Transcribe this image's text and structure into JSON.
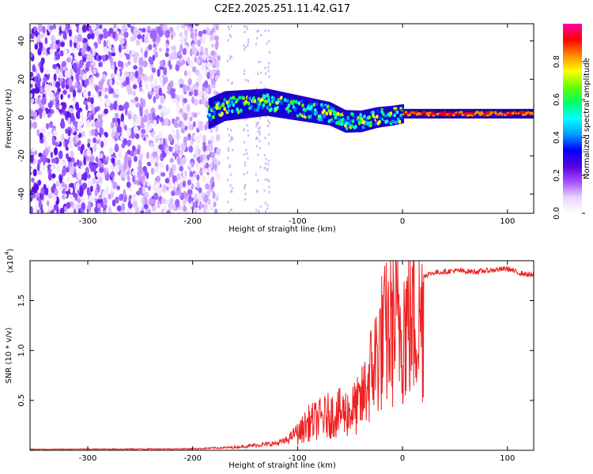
{
  "figure_title": "C2E2.2025.251.11.42.G17",
  "chart_data": [
    {
      "type": "heatmap",
      "title": "C2E2.2025.251.11.42.G17",
      "xlabel": "Height of straight line (km)",
      "ylabel": "Frequency (Hz)",
      "xlim": [
        -355,
        125
      ],
      "ylim": [
        -50,
        49
      ],
      "xticks": [
        -300,
        -200,
        -100,
        0,
        100
      ],
      "yticks": [
        -40,
        -20,
        0,
        20,
        40
      ],
      "colorbar": {
        "label": "Normalized spectral amplitude",
        "range": [
          0,
          1
        ],
        "ticks": [
          "0.0",
          "0.2",
          "0.4",
          "0.6",
          "0.8"
        ],
        "colors": [
          "#ffffff",
          "#e8d6ff",
          "#a64dff",
          "#5500dd",
          "#0000ff",
          "#00a0ff",
          "#00ffff",
          "#00ff66",
          "#66ff00",
          "#ffff00",
          "#ff8800",
          "#ff0000",
          "#ff00aa"
        ]
      },
      "features": [
        {
          "name": "noise",
          "x_range": [
            -355,
            -175
          ],
          "freq_range": [
            -50,
            49
          ],
          "amplitude": "low"
        },
        {
          "name": "signal_track",
          "points": [
            [
              -185,
              2
            ],
            [
              -170,
              6
            ],
            [
              -150,
              7
            ],
            [
              -130,
              8
            ],
            [
              -110,
              6
            ],
            [
              -90,
              4
            ],
            [
              -70,
              2
            ],
            [
              -55,
              -2
            ],
            [
              -40,
              -2
            ],
            [
              -25,
              0
            ],
            [
              -10,
              1
            ],
            [
              0,
              2
            ],
            [
              125,
              2
            ]
          ]
        }
      ]
    },
    {
      "type": "line",
      "xlabel": "Height of straight line (km)",
      "ylabel": "SNR (10 * v/v)",
      "y_scale_label": "(x10",
      "y_scale_exponent": "4",
      "xlim": [
        -355,
        125
      ],
      "ylim": [
        0,
        19000
      ],
      "xticks": [
        -300,
        -200,
        -100,
        0,
        100
      ],
      "yticks": [
        5000,
        10000,
        15000
      ],
      "ytick_labels": [
        "0.5",
        "1.0",
        "1.5"
      ],
      "series": [
        {
          "name": "SNR",
          "color": "#ee2222",
          "envelope": [
            [
              -355,
              100
            ],
            [
              -200,
              150
            ],
            [
              -160,
              300
            ],
            [
              -120,
              700
            ],
            [
              -110,
              1000
            ],
            [
              -100,
              2000
            ],
            [
              -90,
              3500
            ],
            [
              -80,
              4000
            ],
            [
              -70,
              4500
            ],
            [
              -60,
              4800
            ],
            [
              -50,
              5000
            ],
            [
              -40,
              6000
            ],
            [
              -30,
              10000
            ],
            [
              -20,
              14000
            ],
            [
              -10,
              16000
            ],
            [
              0,
              16500
            ],
            [
              10,
              17000
            ],
            [
              20,
              17500
            ],
            [
              30,
              17800
            ],
            [
              50,
              18000
            ],
            [
              70,
              17900
            ],
            [
              90,
              18100
            ],
            [
              100,
              18200
            ],
            [
              110,
              17800
            ],
            [
              125,
              17500
            ]
          ]
        }
      ]
    }
  ]
}
